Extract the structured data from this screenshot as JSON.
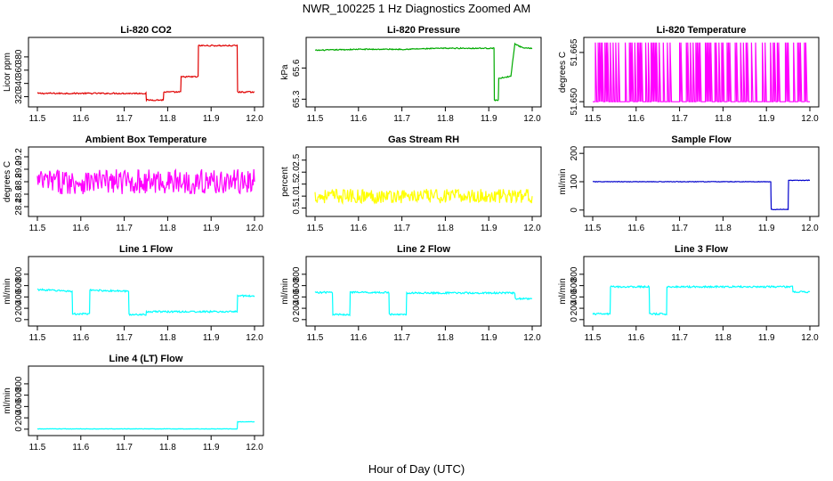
{
  "figure": {
    "title": "NWR_100225  1 Hz Diagnostics Zoomed AM",
    "xlabel": "Hour of Day (UTC)"
  },
  "chart_data": [
    {
      "type": "line",
      "title": "Li-820 CO2",
      "ylabel": "Licor ppm",
      "color": "#e00000",
      "xlim": [
        11.5,
        12.0
      ],
      "ylim": [
        310,
        404
      ],
      "xticks": [
        "11.5",
        "11.6",
        "11.7",
        "11.8",
        "11.9",
        "12.0"
      ],
      "yticks": [
        "320",
        "340",
        "360",
        "380"
      ],
      "series": [
        {
          "x": [
            11.5,
            11.75,
            11.751,
            11.79,
            11.791,
            11.83,
            11.831,
            11.87,
            11.871,
            11.96,
            11.961,
            12.0
          ],
          "y": [
            325,
            325,
            315,
            315,
            327,
            327,
            350,
            350,
            397,
            397,
            327,
            327
          ],
          "noise": 1
        }
      ]
    },
    {
      "type": "line",
      "title": "Li-820 Pressure",
      "ylabel": "kPa",
      "color": "#00aa00",
      "xlim": [
        11.5,
        12.0
      ],
      "ylim": [
        65.26,
        65.86
      ],
      "xticks": [
        "11.5",
        "11.6",
        "11.7",
        "11.8",
        "11.9",
        "12.0"
      ],
      "yticks": [
        "65.3",
        "65.6"
      ],
      "series": [
        {
          "x": [
            11.5,
            11.6,
            11.7,
            11.8,
            11.9,
            11.912,
            11.913,
            11.922,
            11.923,
            11.95,
            11.951,
            11.96,
            11.961,
            11.98,
            12.0
          ],
          "y": [
            65.77,
            65.78,
            65.78,
            65.79,
            65.79,
            65.79,
            65.29,
            65.29,
            65.5,
            65.52,
            65.52,
            65.83,
            65.83,
            65.79,
            65.79
          ],
          "noise": 0.005
        }
      ]
    },
    {
      "type": "line",
      "title": "Li-820 Temperature",
      "ylabel": "degrees C",
      "color": "#ff00ff",
      "xlim": [
        11.5,
        12.0
      ],
      "ylim": [
        51.6495,
        51.6685
      ],
      "xticks": [
        "11.5",
        "11.6",
        "11.7",
        "11.8",
        "11.9",
        "12.0"
      ],
      "yticks": [
        "51.650",
        "51.665"
      ],
      "series": [
        {
          "x": [
            11.5,
            12.0
          ],
          "y": [
            51.65,
            51.668
          ],
          "mode": "toggle"
        }
      ]
    },
    {
      "type": "line",
      "title": "Ambient Box Temperature",
      "ylabel": "degrees C",
      "color": "#ff00ff",
      "xlim": [
        11.5,
        12.0
      ],
      "ylim": [
        28.3,
        29.3
      ],
      "xticks": [
        "11.5",
        "11.6",
        "11.7",
        "11.8",
        "11.9",
        "12.0"
      ],
      "yticks": [
        "28.4",
        "28.6",
        "28.8",
        "29.0",
        "29.2"
      ],
      "series": [
        {
          "x": [
            11.5,
            12.0
          ],
          "y": [
            28.8,
            28.8
          ],
          "noise": 0.2
        }
      ]
    },
    {
      "type": "line",
      "title": "Gas Stream RH",
      "ylabel": "percent",
      "color": "#ffff00",
      "xlim": [
        11.5,
        12.0
      ],
      "ylim": [
        0.3,
        2.9
      ],
      "xticks": [
        "11.5",
        "11.6",
        "11.7",
        "11.8",
        "11.9",
        "12.0"
      ],
      "yticks": [
        "0.5",
        "1.0",
        "1.5",
        "2.0",
        "2.5"
      ],
      "series": [
        {
          "x": [
            11.5,
            12.0
          ],
          "y": [
            1.0,
            1.0
          ],
          "noise": 0.3
        }
      ]
    },
    {
      "type": "line",
      "title": "Sample Flow",
      "ylabel": "ml/min",
      "color": "#0000cc",
      "xlim": [
        11.5,
        12.0
      ],
      "ylim": [
        -10,
        210
      ],
      "xticks": [
        "11.5",
        "11.6",
        "11.7",
        "11.8",
        "11.9",
        "12.0"
      ],
      "yticks": [
        "0",
        "100",
        "200"
      ],
      "series": [
        {
          "x": [
            11.5,
            11.91,
            11.911,
            11.95,
            11.951,
            12.0
          ],
          "y": [
            100,
            100,
            2,
            2,
            105,
            105
          ],
          "noise": 1
        }
      ]
    },
    {
      "type": "line",
      "title": "Line 1 Flow",
      "ylabel": "ml/min",
      "color": "#00ffff",
      "xlim": [
        11.5,
        12.0
      ],
      "ylim": [
        -50,
        1050
      ],
      "xticks": [
        "11.5",
        "11.6",
        "11.7",
        "11.8",
        "11.9",
        "12.0"
      ],
      "yticks": [
        "0",
        "200",
        "400",
        "600",
        "800"
      ],
      "series": [
        {
          "x": [
            11.5,
            11.58,
            11.581,
            11.62,
            11.621,
            11.71,
            11.711,
            11.75,
            11.751,
            11.96,
            11.961,
            12.0
          ],
          "y": [
            530,
            500,
            100,
            100,
            520,
            500,
            90,
            90,
            140,
            140,
            420,
            420
          ],
          "noise": 15
        }
      ]
    },
    {
      "type": "line",
      "title": "Line 2 Flow",
      "ylabel": "ml/min",
      "color": "#00ffff",
      "xlim": [
        11.5,
        12.0
      ],
      "ylim": [
        -50,
        1050
      ],
      "xticks": [
        "11.5",
        "11.6",
        "11.7",
        "11.8",
        "11.9",
        "12.0"
      ],
      "yticks": [
        "0",
        "200",
        "400",
        "600",
        "800"
      ],
      "series": [
        {
          "x": [
            11.5,
            11.54,
            11.541,
            11.58,
            11.581,
            11.67,
            11.671,
            11.71,
            11.711,
            11.96,
            11.961,
            12.0
          ],
          "y": [
            480,
            480,
            90,
            90,
            480,
            480,
            90,
            90,
            470,
            470,
            370,
            370
          ],
          "noise": 15
        }
      ]
    },
    {
      "type": "line",
      "title": "Line 3 Flow",
      "ylabel": "ml/min",
      "color": "#00ffff",
      "xlim": [
        11.5,
        12.0
      ],
      "ylim": [
        -50,
        1050
      ],
      "xticks": [
        "11.5",
        "11.6",
        "11.7",
        "11.8",
        "11.9",
        "12.0"
      ],
      "yticks": [
        "0",
        "200",
        "400",
        "600",
        "800"
      ],
      "series": [
        {
          "x": [
            11.5,
            11.54,
            11.541,
            11.63,
            11.631,
            11.67,
            11.671,
            11.96,
            11.961,
            12.0
          ],
          "y": [
            100,
            100,
            580,
            580,
            100,
            100,
            580,
            580,
            490,
            490
          ],
          "noise": 15
        }
      ]
    },
    {
      "type": "line",
      "title": "Line 4 (LT) Flow",
      "ylabel": "ml/min",
      "color": "#00ffff",
      "xlim": [
        11.5,
        12.0
      ],
      "ylim": [
        -50,
        1050
      ],
      "xticks": [
        "11.5",
        "11.6",
        "11.7",
        "11.8",
        "11.9",
        "12.0"
      ],
      "yticks": [
        "0",
        "200",
        "400",
        "600",
        "800"
      ],
      "series": [
        {
          "x": [
            11.5,
            11.96,
            11.961,
            12.0
          ],
          "y": [
            5,
            5,
            130,
            130
          ],
          "noise": 3
        }
      ]
    }
  ]
}
